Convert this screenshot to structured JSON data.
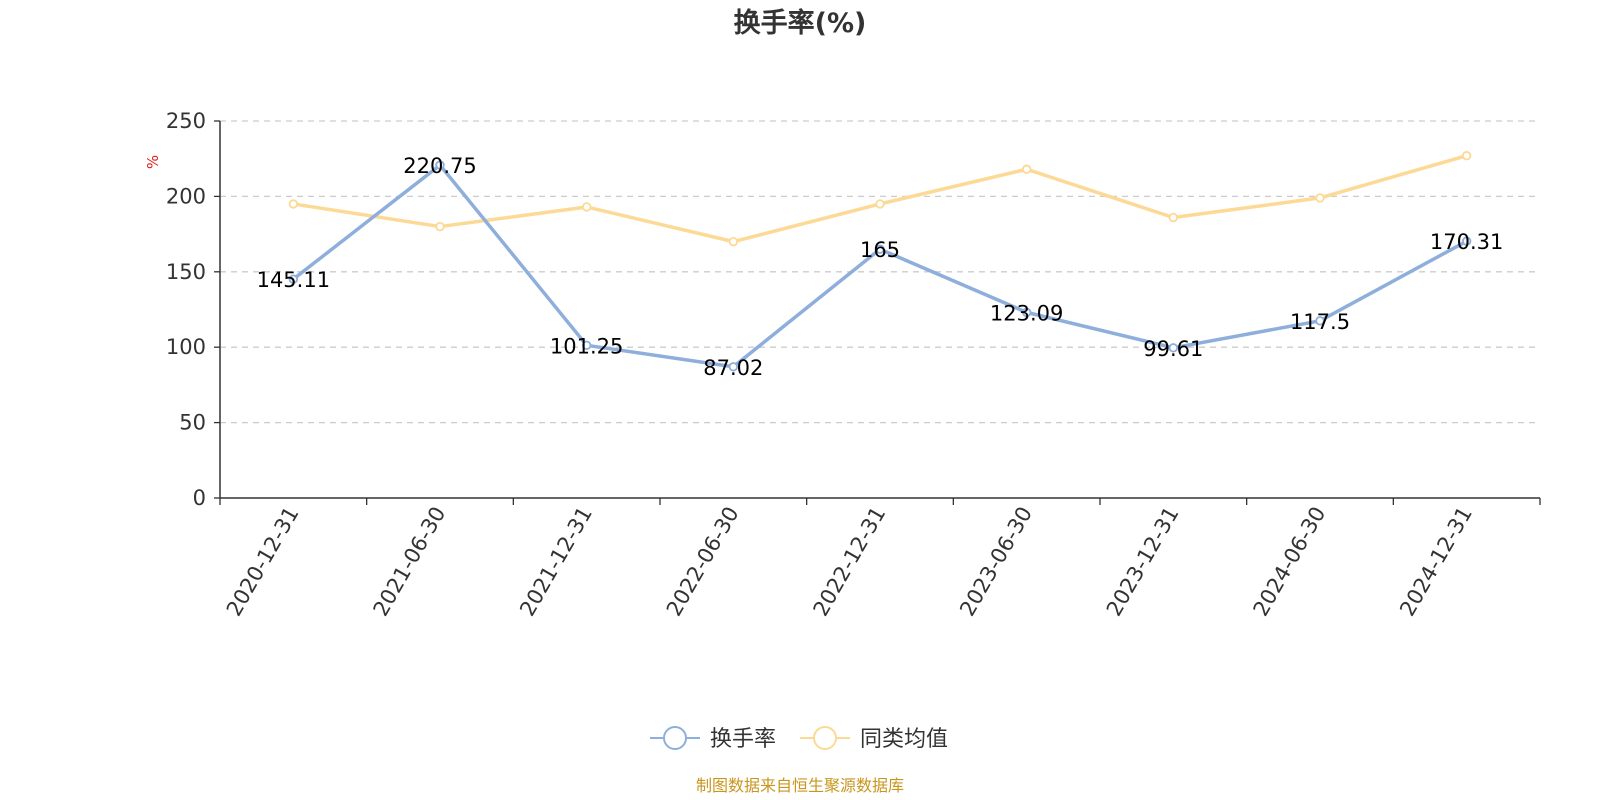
{
  "chart_data": {
    "type": "line",
    "title": "换手率(%)",
    "ylabel": "%",
    "xlabel": "",
    "ylim": [
      0,
      250
    ],
    "yticks": [
      0,
      50,
      100,
      150,
      200,
      250
    ],
    "grid": true,
    "categories": [
      "2020-12-31",
      "2021-06-30",
      "2021-12-31",
      "2022-06-30",
      "2022-12-31",
      "2023-06-30",
      "2023-12-31",
      "2024-06-30",
      "2024-12-31"
    ],
    "series": [
      {
        "name": "换手率",
        "color": "#8eaedb",
        "values": [
          145.11,
          220.75,
          101.25,
          87.02,
          165,
          123.09,
          99.61,
          117.5,
          170.31
        ],
        "labels": [
          "145.11",
          "220.75",
          "101.25",
          "87.02",
          "165",
          "123.09",
          "99.61",
          "117.5",
          "170.31"
        ],
        "show_labels": true
      },
      {
        "name": "同类均值",
        "color": "#fcd995",
        "values": [
          195,
          180,
          193,
          170,
          195,
          218,
          186,
          199,
          227
        ],
        "show_labels": false
      }
    ],
    "legend_position": "bottom-center",
    "source": "制图数据来自恒生聚源数据库",
    "source_color": "#c8961e",
    "unit_color": "#e02020"
  }
}
